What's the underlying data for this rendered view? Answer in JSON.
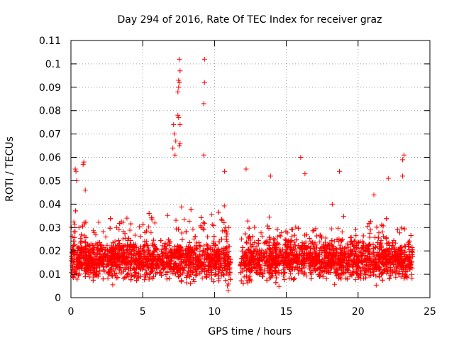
{
  "chart_data": {
    "type": "scatter",
    "title": "Day 294 of 2016, Rate Of TEC Index for receiver graz",
    "xlabel": "GPS time / hours",
    "ylabel": "ROTI / TECUs",
    "xlim": [
      0,
      25
    ],
    "ylim": [
      0,
      0.11
    ],
    "xticks": [
      "0",
      "5",
      "10",
      "15",
      "20",
      "25"
    ],
    "xtick_values": [
      0,
      5,
      10,
      15,
      20,
      25
    ],
    "yticks": [
      "0",
      "0.01",
      "0.02",
      "0.03",
      "0.04",
      "0.05",
      "0.06",
      "0.07",
      "0.08",
      "0.09",
      "0.1",
      "0.11"
    ],
    "ytick_values": [
      0,
      0.01,
      0.02,
      0.03,
      0.04,
      0.05,
      0.06,
      0.07,
      0.08,
      0.09,
      0.1,
      0.11
    ],
    "grid": true,
    "marker": "+",
    "color": "#ff0000",
    "data_gap_hours": [
      11.1,
      11.8
    ],
    "series": [
      {
        "name": "ROTI",
        "note": "dense cloud of ~5000 samples, mostly 0.005-0.03 TECU; notable outliers listed as points",
        "points": [
          [
            7.55,
            0.102
          ],
          [
            9.3,
            0.102
          ],
          [
            7.6,
            0.097
          ],
          [
            7.5,
            0.093
          ],
          [
            7.55,
            0.092
          ],
          [
            9.3,
            0.092
          ],
          [
            7.5,
            0.09
          ],
          [
            7.45,
            0.088
          ],
          [
            9.25,
            0.083
          ],
          [
            7.45,
            0.078
          ],
          [
            7.5,
            0.077
          ],
          [
            7.6,
            0.074
          ],
          [
            7.15,
            0.074
          ],
          [
            7.2,
            0.07
          ],
          [
            7.6,
            0.066
          ],
          [
            7.55,
            0.065
          ],
          [
            7.3,
            0.067
          ],
          [
            7.1,
            0.064
          ],
          [
            9.25,
            0.061
          ],
          [
            7.25,
            0.061
          ],
          [
            16.0,
            0.06
          ],
          [
            23.2,
            0.061
          ],
          [
            23.1,
            0.059
          ],
          [
            0.9,
            0.058
          ],
          [
            0.85,
            0.057
          ],
          [
            0.3,
            0.055
          ],
          [
            0.35,
            0.054
          ],
          [
            12.2,
            0.055
          ],
          [
            10.7,
            0.054
          ],
          [
            23.1,
            0.052
          ],
          [
            18.7,
            0.054
          ],
          [
            22.1,
            0.051
          ],
          [
            16.3,
            0.053
          ],
          [
            13.9,
            0.052
          ],
          [
            0.4,
            0.05
          ],
          [
            21.1,
            0.044
          ],
          [
            1.0,
            0.046
          ],
          [
            11.0,
            0.03
          ],
          [
            10.9,
            0.005
          ],
          [
            10.95,
            0.003
          ],
          [
            3.9,
            0.034
          ],
          [
            18.2,
            0.04
          ]
        ]
      }
    ]
  }
}
